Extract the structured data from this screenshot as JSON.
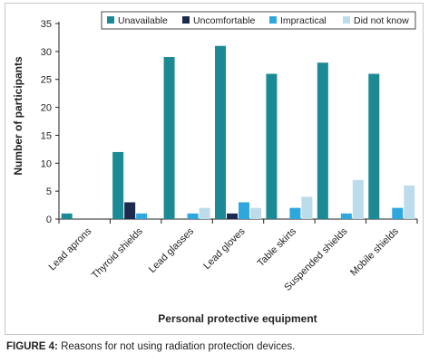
{
  "caption": {
    "label": "FIGURE 4:",
    "text": " Reasons for not using radiation protection devices."
  },
  "chart_data": {
    "type": "bar",
    "title": "",
    "xlabel": "Personal protective equipment",
    "ylabel": "Number of participants",
    "ylim": [
      0,
      35
    ],
    "yticks": [
      0,
      5,
      10,
      15,
      20,
      25,
      30,
      35
    ],
    "grid": false,
    "legend_position": "top",
    "categories": [
      "Lead aprons",
      "Thyroid shields",
      "Lead glasses",
      "Lead gloves",
      "Table skirts",
      "Suspended shields",
      "Mobile shields"
    ],
    "series": [
      {
        "name": "Unavailable",
        "color": "#1c8a94",
        "values": [
          1,
          12,
          29,
          31,
          26,
          28,
          26
        ]
      },
      {
        "name": "Uncomfortable",
        "color": "#1b2a4e",
        "values": [
          0,
          3,
          0,
          1,
          0,
          0,
          0
        ]
      },
      {
        "name": "Impractical",
        "color": "#2ea6de",
        "values": [
          0,
          1,
          1,
          3,
          2,
          1,
          2
        ]
      },
      {
        "name": "Did not know",
        "color": "#bcdcec",
        "values": [
          0,
          0,
          2,
          2,
          4,
          7,
          6
        ]
      }
    ]
  }
}
